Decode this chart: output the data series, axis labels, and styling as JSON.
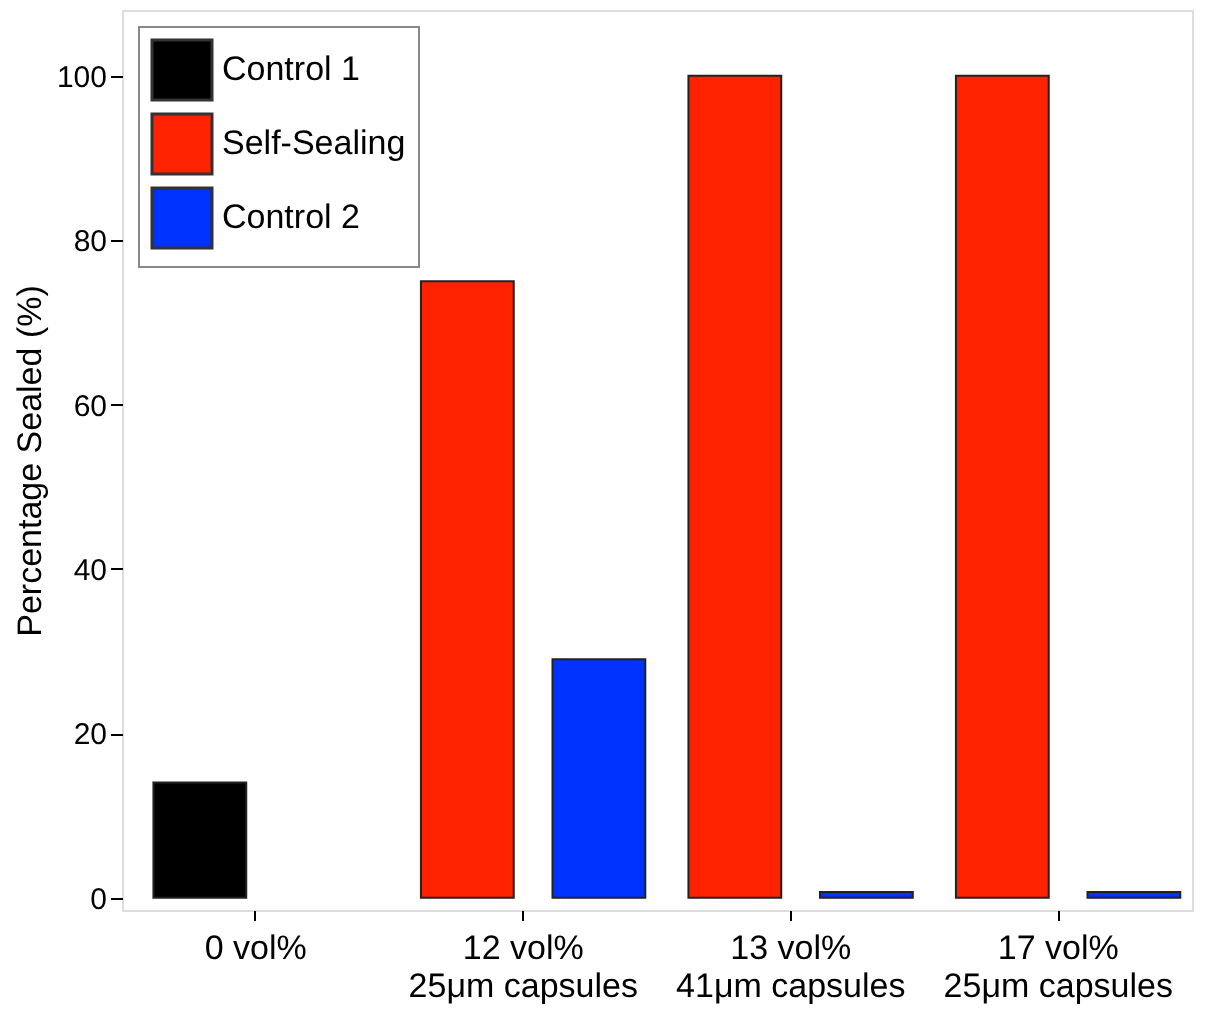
{
  "chart_data": {
    "type": "bar",
    "ylabel": "Percentage Sealed (%)",
    "categories": [
      "0 vol%",
      "12 vol%\n25μm capsules",
      "13 vol%\n41μm capsules",
      "17 vol%\n25μm capsules"
    ],
    "series": [
      {
        "name": "Control 1",
        "color": "#000000",
        "values": [
          14,
          null,
          null,
          null
        ]
      },
      {
        "name": "Self-Sealing",
        "color": "#ff2200",
        "values": [
          null,
          75,
          100,
          100
        ]
      },
      {
        "name": "Control 2",
        "color": "#0033ff",
        "values": [
          null,
          29,
          0.7,
          0.7
        ]
      }
    ],
    "ylim": [
      -1.5,
      108
    ],
    "yticks": [
      0,
      20,
      40,
      60,
      80,
      100
    ],
    "grid": false,
    "legend": "top left"
  }
}
